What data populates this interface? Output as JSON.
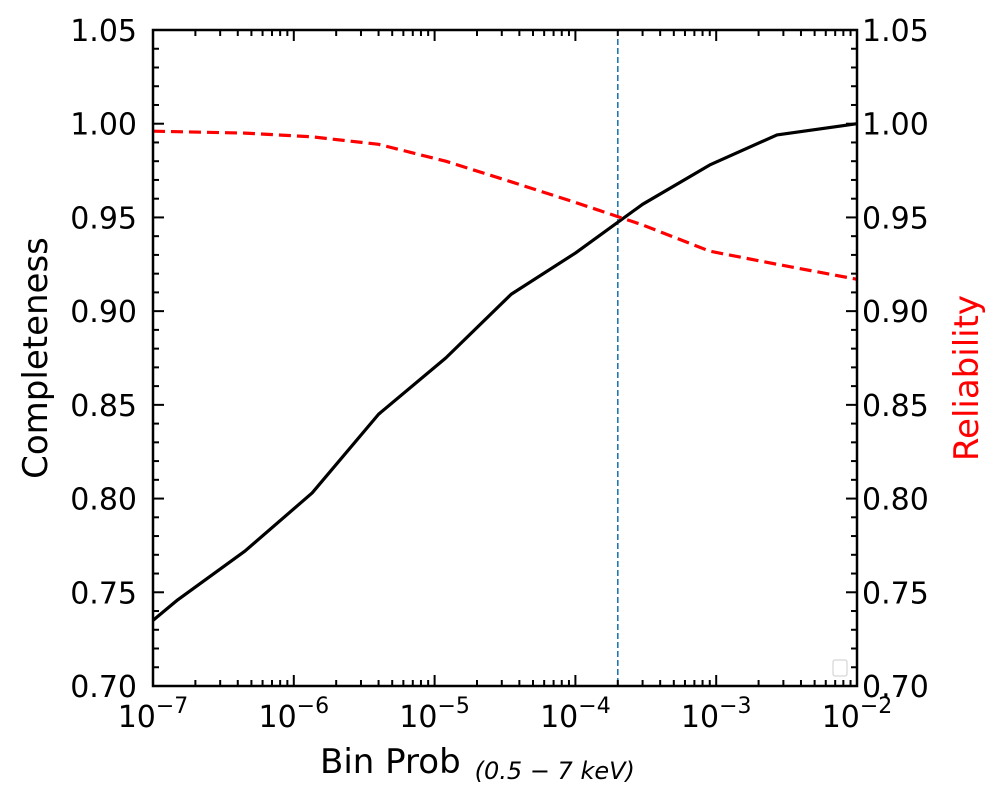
{
  "chart_data": {
    "type": "line",
    "x_scale": "log",
    "xlim": [
      1e-07,
      0.01
    ],
    "ylim": [
      0.7,
      1.05
    ],
    "y2lim": [
      0.7,
      1.05
    ],
    "xlabel": "Bin Prob",
    "xlabel_sub": "(0.5 − 7 keV)",
    "ylabel": "Completeness",
    "y2label": "Reliability",
    "y2label_color": "#ff0000",
    "grid": false,
    "x_tick_labels": [
      {
        "base": "10",
        "exp": "−7",
        "value": 1e-07
      },
      {
        "base": "10",
        "exp": "−6",
        "value": 1e-06
      },
      {
        "base": "10",
        "exp": "−5",
        "value": 1e-05
      },
      {
        "base": "10",
        "exp": "−4",
        "value": 0.0001
      },
      {
        "base": "10",
        "exp": "−3",
        "value": 0.001
      },
      {
        "base": "10",
        "exp": "−2",
        "value": 0.01
      }
    ],
    "y_ticks": [
      0.7,
      0.75,
      0.8,
      0.85,
      0.9,
      0.95,
      1.0,
      1.05
    ],
    "y_tick_labels": [
      "0.70",
      "0.75",
      "0.80",
      "0.85",
      "0.90",
      "0.95",
      "1.00",
      "1.05"
    ],
    "vline": {
      "x": 0.0002,
      "color": "#1f77b4",
      "style": "dashed"
    },
    "series": [
      {
        "axis": "left",
        "color": "#000000",
        "style": "solid",
        "x": [
          1e-07,
          1.5e-07,
          4.5e-07,
          1.35e-06,
          4e-06,
          1.2e-05,
          3.5e-05,
          0.0001,
          0.0003,
          0.0009,
          0.0027,
          0.01
        ],
        "y": [
          0.735,
          0.746,
          0.772,
          0.803,
          0.845,
          0.875,
          0.909,
          0.931,
          0.957,
          0.978,
          0.994,
          1.0
        ]
      },
      {
        "axis": "right",
        "color": "#ff0000",
        "style": "dashed",
        "x": [
          1e-07,
          4.5e-07,
          1.35e-06,
          4e-06,
          1.2e-05,
          3.5e-05,
          0.0001,
          0.0003,
          0.0009,
          0.0027,
          0.01
        ],
        "y": [
          0.996,
          0.995,
          0.993,
          0.989,
          0.98,
          0.969,
          0.958,
          0.946,
          0.932,
          0.925,
          0.917
        ]
      }
    ]
  }
}
